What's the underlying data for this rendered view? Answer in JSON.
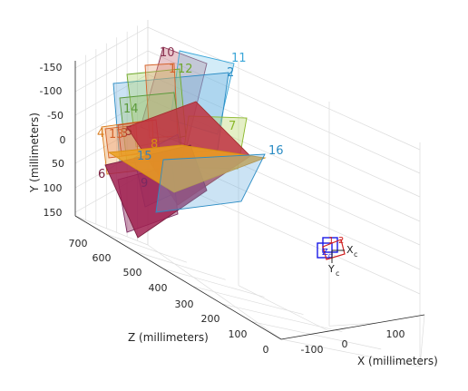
{
  "chart_data": {
    "type": "3d-extrinsics",
    "xlabel": "X (millimeters)",
    "ylabel": "Y (millimeters)",
    "zlabel": "Z (millimeters)",
    "x_ticks": [
      "-100",
      "0",
      "100"
    ],
    "y_ticks": [
      "-150",
      "-100",
      "-50",
      "0",
      "50",
      "100",
      "150"
    ],
    "z_ticks": [
      "700",
      "600",
      "500",
      "400",
      "300",
      "200",
      "100",
      "0"
    ],
    "xlim": [
      -150,
      150
    ],
    "ylim": [
      -175,
      175
    ],
    "zlim": [
      -25,
      750
    ],
    "grid": true,
    "camera": {
      "x_label": "X",
      "x_sub": "c",
      "y_label": "Y",
      "y_sub": "c",
      "z_label": "Z",
      "z_sub": "c"
    },
    "planes": [
      {
        "id": "1",
        "color": "#d4622a",
        "fill": "#e8a07a",
        "opacity": 0.35
      },
      {
        "id": "2",
        "color": "#2b8cc4",
        "fill": "#6aaee0",
        "opacity": 0.35
      },
      {
        "id": "3",
        "color": "#c44b2a",
        "fill": "#e07a5a",
        "opacity": 0.35
      },
      {
        "id": "4",
        "color": "#d97a1a",
        "fill": "#f0b060",
        "opacity": 0.35
      },
      {
        "id": "5",
        "color": "#a43030",
        "fill": "#c03040",
        "opacity": 0.85
      },
      {
        "id": "6",
        "color": "#7a2040",
        "fill": "#a02050",
        "opacity": 0.85
      },
      {
        "id": "7",
        "color": "#8bb82a",
        "fill": "#bcd870",
        "opacity": 0.4
      },
      {
        "id": "8",
        "color": "#d98e12",
        "fill": "#eba020",
        "opacity": 0.85
      },
      {
        "id": "9",
        "color": "#7a2a60",
        "fill": "#9a4070",
        "opacity": 0.5
      },
      {
        "id": "10",
        "color": "#8a3050",
        "fill": "#c06070",
        "opacity": 0.35
      },
      {
        "id": "11",
        "color": "#3aa6d8",
        "fill": "#80c8ec",
        "opacity": 0.35
      },
      {
        "id": "12",
        "color": "#6ea82a",
        "fill": "#a8d060",
        "opacity": 0.35
      },
      {
        "id": "13",
        "color": "#d4622a",
        "fill": "#e89060",
        "opacity": 0.35
      },
      {
        "id": "14",
        "color": "#5a9a3a",
        "fill": "#9ac070",
        "opacity": 0.35
      },
      {
        "id": "15",
        "color": "#3a80b8",
        "fill": "#70a8d8",
        "opacity": 0.35
      },
      {
        "id": "16",
        "color": "#2b8cc4",
        "fill": "#6aaee0",
        "opacity": 0.35
      }
    ]
  }
}
